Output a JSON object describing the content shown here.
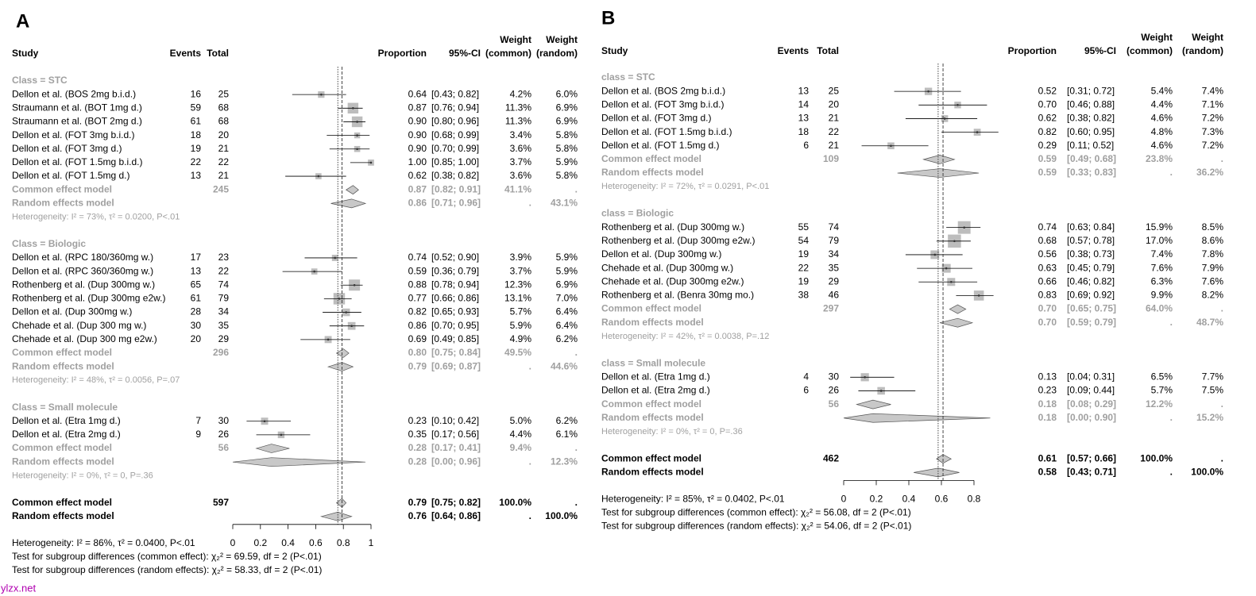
{
  "chart_data": [
    {
      "type": "forest",
      "panel": "A",
      "headers": {
        "study": "Study",
        "events": "Events",
        "total": "Total",
        "proportion": "Proportion",
        "ci": "95%-CI",
        "weight_common": [
          "Weight",
          "(common)"
        ],
        "weight_random": [
          "Weight",
          "(random)"
        ]
      },
      "xlim": [
        0,
        1
      ],
      "xticks": [
        0,
        0.2,
        0.4,
        0.6,
        0.8,
        1
      ],
      "groups": [
        {
          "label": "Class = STC",
          "studies": [
            {
              "study": "Dellon et al. (BOS 2mg b.i.d.)",
              "events": 16,
              "total": 25,
              "value": 0.64,
              "value_label": "0.64",
              "ci": [
                0.43,
                0.82
              ],
              "ci_label": "[0.43; 0.82]",
              "weight_common": "4.2%",
              "weight_random": "6.0%"
            },
            {
              "study": "Straumann et al. (BOT 1mg d.)",
              "events": 59,
              "total": 68,
              "value": 0.87,
              "value_label": "0.87",
              "ci": [
                0.76,
                0.94
              ],
              "ci_label": "[0.76; 0.94]",
              "weight_common": "11.3%",
              "weight_random": "6.9%"
            },
            {
              "study": "Straumann et al. (BOT 2mg d.)",
              "events": 61,
              "total": 68,
              "value": 0.9,
              "value_label": "0.90",
              "ci": [
                0.8,
                0.96
              ],
              "ci_label": "[0.80; 0.96]",
              "weight_common": "11.3%",
              "weight_random": "6.9%"
            },
            {
              "study": "Dellon et al.  (FOT 3mg b.i.d.)",
              "events": 18,
              "total": 20,
              "value": 0.9,
              "value_label": "0.90",
              "ci": [
                0.68,
                0.99
              ],
              "ci_label": "[0.68; 0.99]",
              "weight_common": "3.4%",
              "weight_random": "5.8%"
            },
            {
              "study": "Dellon et al.  (FOT 3mg d.)",
              "events": 19,
              "total": 21,
              "value": 0.9,
              "value_label": "0.90",
              "ci": [
                0.7,
                0.99
              ],
              "ci_label": "[0.70; 0.99]",
              "weight_common": "3.6%",
              "weight_random": "5.8%"
            },
            {
              "study": "Dellon et al.  (FOT 1.5mg b.i.d.)",
              "events": 22,
              "total": 22,
              "value": 1,
              "value_label": "1.00",
              "ci": [
                0.85,
                1
              ],
              "ci_label": "[0.85; 1.00]",
              "weight_common": "3.7%",
              "weight_random": "5.9%"
            },
            {
              "study": "Dellon et al.  (FOT 1.5mg d.)",
              "events": 13,
              "total": 21,
              "value": 0.62,
              "value_label": "0.62",
              "ci": [
                0.38,
                0.82
              ],
              "ci_label": "[0.38; 0.82]",
              "weight_common": "3.6%",
              "weight_random": "5.8%"
            }
          ],
          "common": {
            "label": "Common effect model",
            "total": 245,
            "value": 0.87,
            "value_label": "0.87",
            "ci": [
              0.82,
              0.91
            ],
            "ci_label": "[0.82; 0.91]",
            "weight_common": "41.1%",
            "weight_random": "."
          },
          "random": {
            "label": "Random effects model",
            "value": 0.86,
            "value_label": "0.86",
            "ci": [
              0.71,
              0.96
            ],
            "ci_label": "[0.71; 0.96]",
            "weight_common": ".",
            "weight_random": "43.1%"
          },
          "heterogeneity": "Heterogeneity: I² = 73%, τ² = 0.0200, P<.01"
        },
        {
          "label": "Class = Biologic",
          "studies": [
            {
              "study": "Dellon et al. (RPC 180/360mg w.)",
              "events": 17,
              "total": 23,
              "value": 0.74,
              "value_label": "0.74",
              "ci": [
                0.52,
                0.9
              ],
              "ci_label": "[0.52; 0.90]",
              "weight_common": "3.9%",
              "weight_random": "5.9%"
            },
            {
              "study": "Dellon et al. (RPC 360/360mg w.)",
              "events": 13,
              "total": 22,
              "value": 0.59,
              "value_label": "0.59",
              "ci": [
                0.36,
                0.79
              ],
              "ci_label": "[0.36; 0.79]",
              "weight_common": "3.7%",
              "weight_random": "5.9%"
            },
            {
              "study": "Rothenberg et al. (Dup 300mg w.)",
              "events": 65,
              "total": 74,
              "value": 0.88,
              "value_label": "0.88",
              "ci": [
                0.78,
                0.94
              ],
              "ci_label": "[0.78; 0.94]",
              "weight_common": "12.3%",
              "weight_random": "6.9%"
            },
            {
              "study": "Rothenberg et al. (Dup 300mg e2w.)",
              "events": 61,
              "total": 79,
              "value": 0.77,
              "value_label": "0.77",
              "ci": [
                0.66,
                0.86
              ],
              "ci_label": "[0.66; 0.86]",
              "weight_common": "13.1%",
              "weight_random": "7.0%"
            },
            {
              "study": "Dellon et al. (Dup 300mg w.)",
              "events": 28,
              "total": 34,
              "value": 0.82,
              "value_label": "0.82",
              "ci": [
                0.65,
                0.93
              ],
              "ci_label": "[0.65; 0.93]",
              "weight_common": "5.7%",
              "weight_random": "6.4%"
            },
            {
              "study": "Chehade et al. (Dup 300 mg w.)",
              "events": 30,
              "total": 35,
              "value": 0.86,
              "value_label": "0.86",
              "ci": [
                0.7,
                0.95
              ],
              "ci_label": "[0.70; 0.95]",
              "weight_common": "5.9%",
              "weight_random": "6.4%"
            },
            {
              "study": "Chehade et al. (Dup 300 mg e2w.)",
              "events": 20,
              "total": 29,
              "value": 0.69,
              "value_label": "0.69",
              "ci": [
                0.49,
                0.85
              ],
              "ci_label": "[0.49; 0.85]",
              "weight_common": "4.9%",
              "weight_random": "6.2%"
            }
          ],
          "common": {
            "label": "Common effect model",
            "total": 296,
            "value": 0.8,
            "value_label": "0.80",
            "ci": [
              0.75,
              0.84
            ],
            "ci_label": "[0.75; 0.84]",
            "weight_common": "49.5%",
            "weight_random": "."
          },
          "random": {
            "label": "Random effects model",
            "value": 0.79,
            "value_label": "0.79",
            "ci": [
              0.69,
              0.87
            ],
            "ci_label": "[0.69; 0.87]",
            "weight_common": ".",
            "weight_random": "44.6%"
          },
          "heterogeneity": "Heterogeneity: I² = 48%, τ² = 0.0056, P=.07"
        },
        {
          "label": "Class = Small molecule",
          "studies": [
            {
              "study": "Dellon et al. (Etra 1mg d.)",
              "events": 7,
              "total": 30,
              "value": 0.23,
              "value_label": "0.23",
              "ci": [
                0.1,
                0.42
              ],
              "ci_label": "[0.10; 0.42]",
              "weight_common": "5.0%",
              "weight_random": "6.2%"
            },
            {
              "study": "Dellon et al. (Etra 2mg d.)",
              "events": 9,
              "total": 26,
              "value": 0.35,
              "value_label": "0.35",
              "ci": [
                0.17,
                0.56
              ],
              "ci_label": "[0.17; 0.56]",
              "weight_common": "4.4%",
              "weight_random": "6.1%"
            }
          ],
          "common": {
            "label": "Common effect model",
            "total": 56,
            "value": 0.28,
            "value_label": "0.28",
            "ci": [
              0.17,
              0.41
            ],
            "ci_label": "[0.17; 0.41]",
            "weight_common": "9.4%",
            "weight_random": "."
          },
          "random": {
            "label": "Random effects model",
            "value": 0.28,
            "value_label": "0.28",
            "ci": [
              0,
              0.96
            ],
            "ci_label": "[0.00; 0.96]",
            "weight_common": ".",
            "weight_random": "12.3%"
          },
          "heterogeneity": "Heterogeneity: I² = 0%, τ² = 0, P=.36"
        }
      ],
      "overall": {
        "common": {
          "label": "Common effect model",
          "total": 597,
          "value": 0.79,
          "value_label": "0.79",
          "ci": [
            0.75,
            0.82
          ],
          "ci_label": "[0.75; 0.82]",
          "weight_common": "100.0%",
          "weight_random": "."
        },
        "random": {
          "label": "Random effects model",
          "value": 0.76,
          "value_label": "0.76",
          "ci": [
            0.64,
            0.86
          ],
          "ci_label": "[0.64; 0.86]",
          "weight_common": ".",
          "weight_random": "100.0%"
        },
        "heterogeneity": "Heterogeneity: I² = 86%, τ² = 0.0400, P<.01",
        "tests": [
          "Test for subgroup differences (common effect): χ₂² = 69.59, df = 2 (P<.01)",
          "Test for subgroup differences (random effects): χ₂² = 58.33, df = 2 (P<.01)"
        ]
      }
    },
    {
      "type": "forest",
      "panel": "B",
      "headers": {
        "study": "Study",
        "events": "Events",
        "total": "Total",
        "proportion": "Proportion",
        "ci": "95%-CI",
        "weight_common": [
          "Weight",
          "(common)"
        ],
        "weight_random": [
          "Weight",
          "(random)"
        ]
      },
      "xlim": [
        0,
        0.8
      ],
      "xticks": [
        0,
        0.2,
        0.4,
        0.6,
        0.8
      ],
      "groups": [
        {
          "label": "class = STC",
          "studies": [
            {
              "study": "Dellon et al. (BOS 2mg b.i.d.)",
              "events": 13,
              "total": 25,
              "value": 0.52,
              "value_label": "0.52",
              "ci": [
                0.31,
                0.72
              ],
              "ci_label": "[0.31; 0.72]",
              "weight_common": "5.4%",
              "weight_random": "7.4%"
            },
            {
              "study": "Dellon et al.  (FOT 3mg b.i.d.)",
              "events": 14,
              "total": 20,
              "value": 0.7,
              "value_label": "0.70",
              "ci": [
                0.46,
                0.88
              ],
              "ci_label": "[0.46; 0.88]",
              "weight_common": "4.4%",
              "weight_random": "7.1%"
            },
            {
              "study": "Dellon et al.  (FOT 3mg d.)",
              "events": 13,
              "total": 21,
              "value": 0.62,
              "value_label": "0.62",
              "ci": [
                0.38,
                0.82
              ],
              "ci_label": "[0.38; 0.82]",
              "weight_common": "4.6%",
              "weight_random": "7.2%"
            },
            {
              "study": "Dellon et al.  (FOT 1.5mg b.i.d.)",
              "events": 18,
              "total": 22,
              "value": 0.82,
              "value_label": "0.82",
              "ci": [
                0.6,
                0.95
              ],
              "ci_label": "[0.60; 0.95]",
              "weight_common": "4.8%",
              "weight_random": "7.3%"
            },
            {
              "study": "Dellon et al.  (FOT 1.5mg d.)",
              "events": 6,
              "total": 21,
              "value": 0.29,
              "value_label": "0.29",
              "ci": [
                0.11,
                0.52
              ],
              "ci_label": "[0.11; 0.52]",
              "weight_common": "4.6%",
              "weight_random": "7.2%"
            }
          ],
          "common": {
            "label": "Common effect model",
            "total": 109,
            "value": 0.59,
            "value_label": "0.59",
            "ci": [
              0.49,
              0.68
            ],
            "ci_label": "[0.49; 0.68]",
            "weight_common": "23.8%",
            "weight_random": "."
          },
          "random": {
            "label": "Random effects model",
            "value": 0.59,
            "value_label": "0.59",
            "ci": [
              0.33,
              0.83
            ],
            "ci_label": "[0.33; 0.83]",
            "weight_common": ".",
            "weight_random": "36.2%"
          },
          "heterogeneity": "Heterogeneity: I² = 72%, τ² = 0.0291, P<.01"
        },
        {
          "label": "class = Biologic",
          "studies": [
            {
              "study": "Rothenberg et al. (Dup 300mg w.)",
              "events": 55,
              "total": 74,
              "value": 0.74,
              "value_label": "0.74",
              "ci": [
                0.63,
                0.84
              ],
              "ci_label": "[0.63; 0.84]",
              "weight_common": "15.9%",
              "weight_random": "8.5%"
            },
            {
              "study": "Rothenberg et al. (Dup 300mg e2w.)",
              "events": 54,
              "total": 79,
              "value": 0.68,
              "value_label": "0.68",
              "ci": [
                0.57,
                0.78
              ],
              "ci_label": "[0.57; 0.78]",
              "weight_common": "17.0%",
              "weight_random": "8.6%"
            },
            {
              "study": "Dellon et al. (Dup 300mg w.)",
              "events": 19,
              "total": 34,
              "value": 0.56,
              "value_label": "0.56",
              "ci": [
                0.38,
                0.73
              ],
              "ci_label": "[0.38; 0.73]",
              "weight_common": "7.4%",
              "weight_random": "7.8%"
            },
            {
              "study": "Chehade et al. (Dup 300mg w.)",
              "events": 22,
              "total": 35,
              "value": 0.63,
              "value_label": "0.63",
              "ci": [
                0.45,
                0.79
              ],
              "ci_label": "[0.45; 0.79]",
              "weight_common": "7.6%",
              "weight_random": "7.9%"
            },
            {
              "study": "Chehade et al. (Dup 300mg e2w.)",
              "events": 19,
              "total": 29,
              "value": 0.66,
              "value_label": "0.66",
              "ci": [
                0.46,
                0.82
              ],
              "ci_label": "[0.46; 0.82]",
              "weight_common": "6.3%",
              "weight_random": "7.6%"
            },
            {
              "study": "Rothenberg et al. (Benra 30mg mo.)",
              "events": 38,
              "total": 46,
              "value": 0.83,
              "value_label": "0.83",
              "ci": [
                0.69,
                0.92
              ],
              "ci_label": "[0.69; 0.92]",
              "weight_common": "9.9%",
              "weight_random": "8.2%"
            }
          ],
          "common": {
            "label": "Common effect model",
            "total": 297,
            "value": 0.7,
            "value_label": "0.70",
            "ci": [
              0.65,
              0.75
            ],
            "ci_label": "[0.65; 0.75]",
            "weight_common": "64.0%",
            "weight_random": "."
          },
          "random": {
            "label": "Random effects model",
            "value": 0.7,
            "value_label": "0.70",
            "ci": [
              0.59,
              0.79
            ],
            "ci_label": "[0.59; 0.79]",
            "weight_common": ".",
            "weight_random": "48.7%"
          },
          "heterogeneity": "Heterogeneity: I² = 42%, τ² = 0.0038, P=.12"
        },
        {
          "label": "class = Small molecule",
          "studies": [
            {
              "study": "Dellon et al. (Etra 1mg d.)",
              "events": 4,
              "total": 30,
              "value": 0.13,
              "value_label": "0.13",
              "ci": [
                0.04,
                0.31
              ],
              "ci_label": "[0.04; 0.31]",
              "weight_common": "6.5%",
              "weight_random": "7.7%"
            },
            {
              "study": "Dellon et al. (Etra 2mg d.)",
              "events": 6,
              "total": 26,
              "value": 0.23,
              "value_label": "0.23",
              "ci": [
                0.09,
                0.44
              ],
              "ci_label": "[0.09; 0.44]",
              "weight_common": "5.7%",
              "weight_random": "7.5%"
            }
          ],
          "common": {
            "label": "Common effect model",
            "total": 56,
            "value": 0.18,
            "value_label": "0.18",
            "ci": [
              0.08,
              0.29
            ],
            "ci_label": "[0.08; 0.29]",
            "weight_common": "12.2%",
            "weight_random": "."
          },
          "random": {
            "label": "Random effects model",
            "value": 0.18,
            "value_label": "0.18",
            "ci": [
              0,
              0.9
            ],
            "ci_label": "[0.00; 0.90]",
            "weight_common": ".",
            "weight_random": "15.2%"
          },
          "heterogeneity": "Heterogeneity: I² = 0%, τ² = 0, P=.36"
        }
      ],
      "overall": {
        "common": {
          "label": "Common effect model",
          "total": 462,
          "value": 0.61,
          "value_label": "0.61",
          "ci": [
            0.57,
            0.66
          ],
          "ci_label": "[0.57; 0.66]",
          "weight_common": "100.0%",
          "weight_random": "."
        },
        "random": {
          "label": "Random effects model",
          "value": 0.58,
          "value_label": "0.58",
          "ci": [
            0.43,
            0.71
          ],
          "ci_label": "[0.43; 0.71]",
          "weight_common": ".",
          "weight_random": "100.0%"
        },
        "heterogeneity": "Heterogeneity: I² = 85%, τ² = 0.0402, P<.01",
        "tests": [
          "Test for subgroup differences (common effect): χ₂² = 56.08, df = 2 (P<.01)",
          "Test for subgroup differences (random effects): χ₂² = 54.06, df = 2 (P<.01)"
        ]
      }
    }
  ],
  "watermark": "ylzx.net"
}
